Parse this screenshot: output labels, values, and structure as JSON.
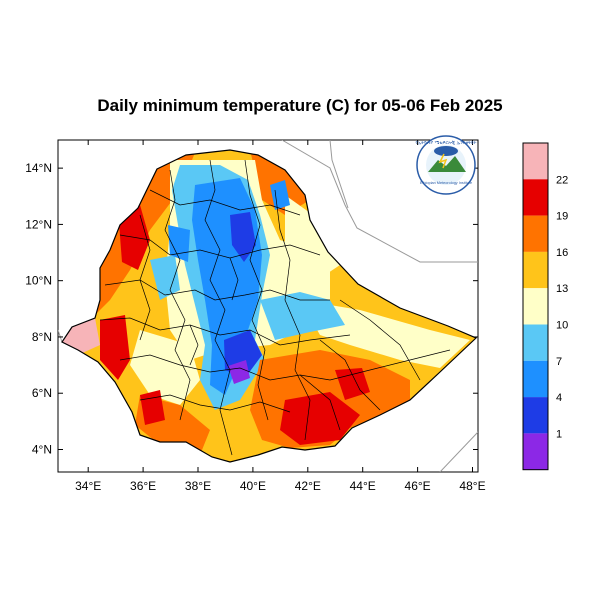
{
  "title": "Daily minimum temperature (C) for 05-06 Feb 2025",
  "axes": {
    "x_ticks": [
      "34°E",
      "36°E",
      "38°E",
      "40°E",
      "42°E",
      "44°E",
      "46°E",
      "48°E"
    ],
    "y_ticks": [
      "14°N",
      "12°N",
      "10°N",
      "8°N",
      "6°N",
      "4°N"
    ],
    "x_tick_values": [
      34,
      36,
      38,
      40,
      42,
      44,
      46,
      48
    ],
    "y_tick_values": [
      14,
      12,
      10,
      8,
      6,
      4
    ],
    "lon_range": [
      32.9,
      48.2
    ],
    "lat_range": [
      3.2,
      15.0
    ]
  },
  "colorbar": {
    "labels": [
      "22",
      "19",
      "16",
      "13",
      "10",
      "7",
      "4",
      "1"
    ],
    "colors": [
      "#f7b4b8",
      "#e60000",
      "#ff7300",
      "#ffc41a",
      "#ffffc8",
      "#5ac8f5",
      "#1e90ff",
      "#1e3ce6",
      "#8c28e6"
    ]
  },
  "palette": {
    "pink": "#f7b4b8",
    "red": "#e60000",
    "orange": "#ff7300",
    "amber": "#ffc41a",
    "cream": "#ffffc8",
    "light_blue": "#5ac8f5",
    "blue": "#1e90ff",
    "dark_blue": "#1e3ce6",
    "purple": "#8c28e6"
  },
  "logo": {
    "top_text": "የኢትዮጵያ ሜቴዎሮሎጂ ኢንስቲትዩት",
    "bottom_text": "Ethiopian Meteorology Institute"
  }
}
